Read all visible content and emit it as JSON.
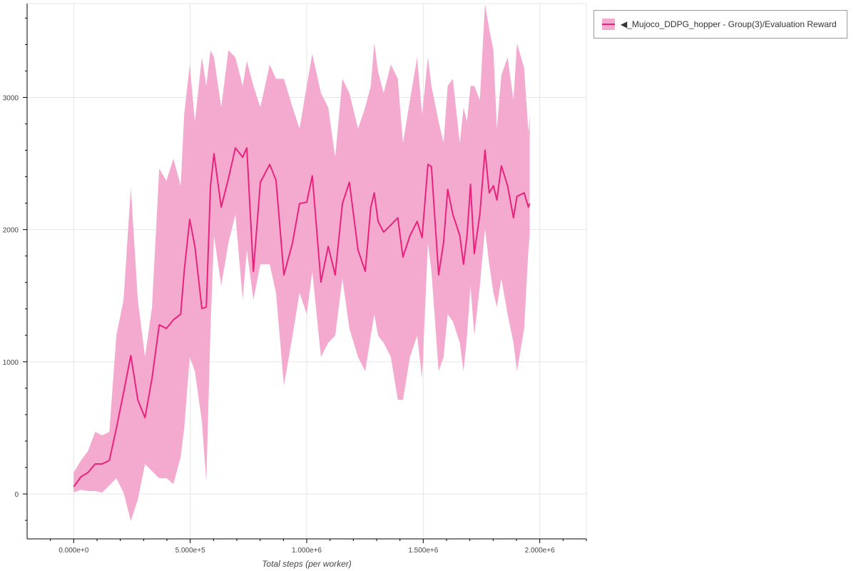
{
  "chart_data": {
    "type": "line",
    "title": "",
    "xlabel": "Total steps (per worker)",
    "ylabel": "",
    "xlim": [
      -200000,
      2200000
    ],
    "ylim": [
      -340,
      3710
    ],
    "grid": true,
    "legend_placement": "outside-top-right",
    "x_ticks": [
      0,
      500000,
      1000000,
      1500000,
      2000000
    ],
    "x_tick_labels": [
      "0.000e+0",
      "5.000e+5",
      "1.000e+6",
      "1.500e+6",
      "2.000e+6"
    ],
    "y_ticks": [
      0,
      1000,
      2000,
      3000
    ],
    "y_tick_labels": [
      "0",
      "1000",
      "2000",
      "3000"
    ],
    "colors": {
      "line": "#e8237e",
      "band": "#f4a9cf",
      "grid": "#e5e5e5"
    },
    "series": [
      {
        "name": "◀_Mujoco_DDPG_hopper - Group(3)/Evaluation Reward",
        "x": [
          0,
          31000,
          61000,
          92000,
          122000,
          153000,
          183000,
          214000,
          245000,
          275000,
          306000,
          336000,
          367000,
          398000,
          428000,
          459000,
          474000,
          498000,
          520000,
          550000,
          569000,
          587000,
          602000,
          633000,
          664000,
          694000,
          725000,
          743000,
          771000,
          801000,
          841000,
          868000,
          902000,
          939000,
          969000,
          1000000,
          1024000,
          1061000,
          1092000,
          1122000,
          1153000,
          1183000,
          1220000,
          1251000,
          1275000,
          1290000,
          1306000,
          1330000,
          1361000,
          1391000,
          1413000,
          1443000,
          1474000,
          1495000,
          1520000,
          1535000,
          1566000,
          1587000,
          1605000,
          1627000,
          1657000,
          1673000,
          1688000,
          1703000,
          1719000,
          1743000,
          1765000,
          1783000,
          1801000,
          1816000,
          1835000,
          1862000,
          1887000,
          1902000,
          1933000,
          1951000,
          1957000
        ],
        "mean": [
          54,
          130,
          162,
          227,
          227,
          254,
          496,
          766,
          1047,
          712,
          577,
          874,
          1279,
          1252,
          1317,
          1360,
          1684,
          2078,
          1873,
          1403,
          1414,
          2332,
          2574,
          2170,
          2385,
          2618,
          2548,
          2618,
          1684,
          2358,
          2493,
          2375,
          1657,
          1900,
          2197,
          2207,
          2407,
          1603,
          1873,
          1657,
          2197,
          2358,
          1846,
          1684,
          2170,
          2278,
          2062,
          1981,
          2035,
          2089,
          1792,
          1954,
          2062,
          1938,
          2493,
          2477,
          1657,
          1900,
          2304,
          2116,
          1954,
          1738,
          1954,
          2342,
          1819,
          2116,
          2601,
          2278,
          2332,
          2224,
          2483,
          2332,
          2089,
          2251,
          2278,
          2170,
          2197
        ],
        "upper": [
          162,
          254,
          324,
          470,
          443,
          470,
          1198,
          1468,
          2321,
          1468,
          1036,
          1414,
          2461,
          2369,
          2537,
          2332,
          2871,
          3249,
          2817,
          3303,
          3087,
          3357,
          3303,
          2925,
          3357,
          3303,
          3087,
          3276,
          3087,
          2925,
          3249,
          3141,
          3141,
          2925,
          2763,
          3087,
          3330,
          3033,
          2925,
          2547,
          3141,
          3033,
          2763,
          2925,
          3087,
          3411,
          3195,
          3033,
          3249,
          3141,
          2655,
          2979,
          3303,
          2871,
          3303,
          3087,
          2817,
          2655,
          3087,
          3141,
          2655,
          2925,
          2817,
          3087,
          3087,
          2979,
          3708,
          3519,
          3357,
          2763,
          3168,
          3303,
          2979,
          3411,
          3222,
          2736,
          2871
        ],
        "lower": [
          11,
          32,
          22,
          22,
          11,
          65,
          119,
          11,
          -205,
          -43,
          227,
          173,
          119,
          119,
          76,
          281,
          496,
          1036,
          928,
          550,
          92,
          1252,
          1954,
          1576,
          1900,
          2116,
          1468,
          1846,
          1468,
          1738,
          1738,
          1522,
          820,
          1198,
          1522,
          1360,
          1684,
          1036,
          1144,
          1198,
          1630,
          1252,
          1036,
          928,
          1198,
          1360,
          1198,
          1144,
          1036,
          712,
          712,
          1036,
          1198,
          874,
          1900,
          1684,
          928,
          1036,
          1360,
          1306,
          1144,
          928,
          1198,
          1576,
          1198,
          1576,
          2008,
          1738,
          1522,
          1414,
          1630,
          1360,
          1144,
          928,
          1252,
          1846,
          1954
        ]
      }
    ]
  }
}
